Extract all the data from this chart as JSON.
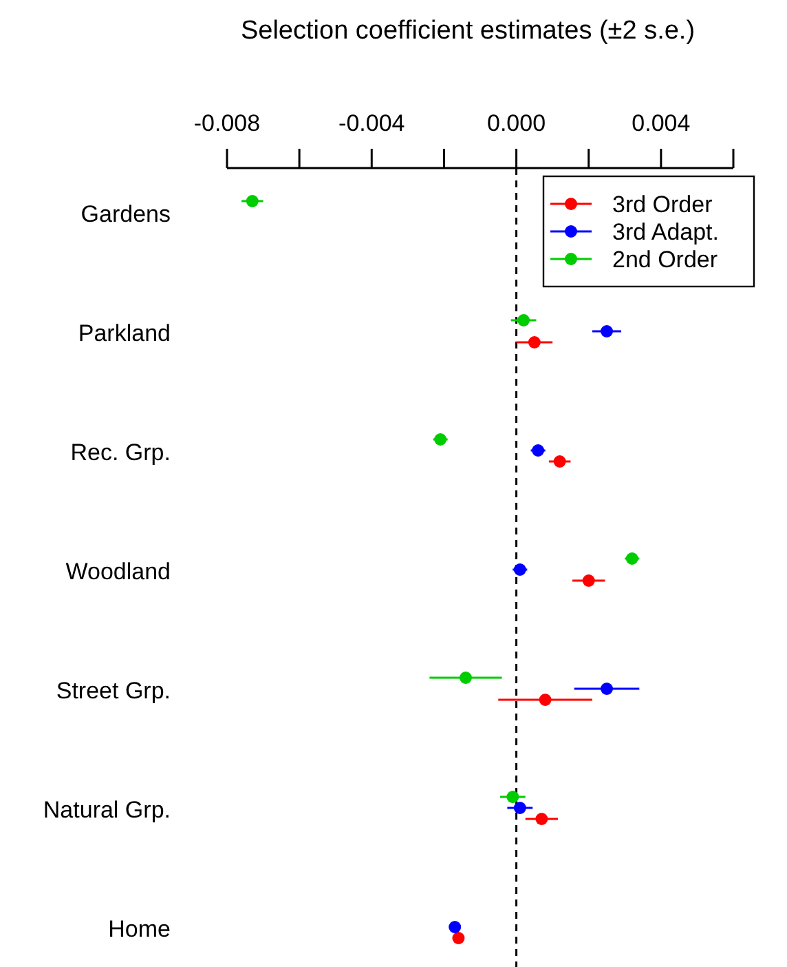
{
  "chart_data": {
    "type": "scatter",
    "orientation": "horizontal",
    "title": "Selection coefficient estimates (±2 s.e.)",
    "categories": [
      "Gardens",
      "Parkland",
      "Rec. Grp.",
      "Woodland",
      "Street Grp.",
      "Natural Grp.",
      "Home"
    ],
    "series": [
      {
        "name": "3rd Order",
        "color": "#ff0000",
        "values": [
          null,
          0.0005,
          0.0012,
          0.002,
          0.0008,
          0.0007,
          -0.0016
        ],
        "errors": [
          null,
          0.0005,
          0.0003,
          0.00045,
          0.0013,
          0.00045,
          0.0001
        ]
      },
      {
        "name": "3rd Adapt.",
        "color": "#0000ff",
        "values": [
          null,
          0.0025,
          0.0006,
          0.0001,
          0.0025,
          0.0001,
          -0.0017
        ],
        "errors": [
          null,
          0.0004,
          0.0002,
          0.0002,
          0.0009,
          0.00035,
          0.0001
        ]
      },
      {
        "name": "2nd Order",
        "color": "#00cd00",
        "values": [
          -0.0073,
          0.0002,
          -0.0021,
          0.0032,
          -0.0014,
          -0.0001,
          null
        ],
        "errors": [
          0.0003,
          0.00035,
          0.0002,
          0.0002,
          0.001,
          0.00035,
          null
        ]
      }
    ],
    "xlim": [
      -0.008,
      0.006
    ],
    "xticks": [
      -0.008,
      {
        "value": -0.006,
        "label": null
      },
      -0.004,
      {
        "value": -0.002,
        "label": null
      },
      "0.000",
      {
        "value": 0.002,
        "label": null
      },
      0.004,
      {
        "value": 0.006,
        "label": null
      }
    ],
    "ref_lines": [
      {
        "axis": "x",
        "value": 0,
        "line_style": "dashed",
        "color": "#000000"
      }
    ],
    "marker": "circle",
    "legend": "top right",
    "grid": false
  }
}
